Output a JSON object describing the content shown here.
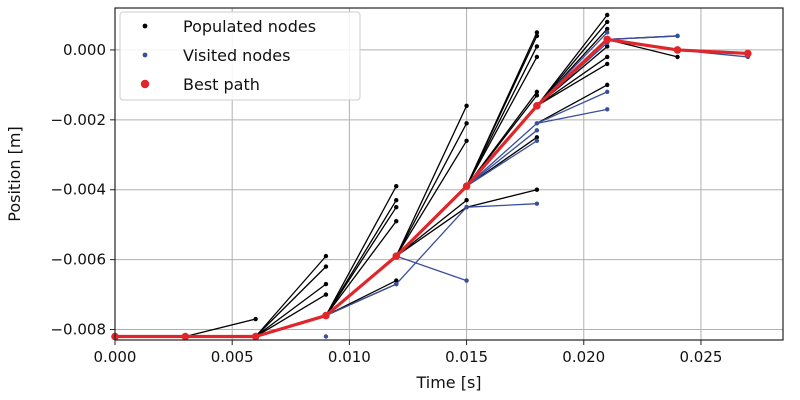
{
  "chart_data": {
    "type": "line",
    "xlabel": "Time [s]",
    "ylabel": "Position [m]",
    "xlim": [
      0,
      0.0285
    ],
    "ylim": [
      -0.0083,
      0.0012
    ],
    "x_ticks": [
      0,
      0.005,
      0.01,
      0.015,
      0.02,
      0.025
    ],
    "x_tick_labels": [
      "0.000",
      "0.005",
      "0.010",
      "0.015",
      "0.020",
      "0.025"
    ],
    "y_ticks": [
      -0.008,
      -0.006,
      -0.004,
      -0.002,
      0.0
    ],
    "y_tick_labels": [
      "−0.008",
      "−0.006",
      "−0.004",
      "−0.002",
      "0.000"
    ],
    "grid": true,
    "legend_position": "top-left",
    "colors": {
      "populated": "#000000",
      "visited": "#3a4f9c",
      "best": "#e0262b"
    },
    "series": [
      {
        "name": "Populated nodes",
        "style": "segments",
        "segments": [
          [
            [
              0.0,
              -0.0082
            ],
            [
              0.003,
              -0.0082
            ]
          ],
          [
            [
              0.003,
              -0.0082
            ],
            [
              0.006,
              -0.0077
            ]
          ],
          [
            [
              0.006,
              -0.0082
            ],
            [
              0.009,
              -0.0059
            ]
          ],
          [
            [
              0.006,
              -0.0082
            ],
            [
              0.009,
              -0.0062
            ]
          ],
          [
            [
              0.006,
              -0.0082
            ],
            [
              0.009,
              -0.0067
            ]
          ],
          [
            [
              0.006,
              -0.0082
            ],
            [
              0.009,
              -0.007
            ]
          ],
          [
            [
              0.006,
              -0.0082
            ],
            [
              0.009,
              -0.0076
            ]
          ],
          [
            [
              0.009,
              -0.0076
            ],
            [
              0.012,
              -0.0039
            ]
          ],
          [
            [
              0.009,
              -0.0076
            ],
            [
              0.012,
              -0.0043
            ]
          ],
          [
            [
              0.009,
              -0.0076
            ],
            [
              0.012,
              -0.0045
            ]
          ],
          [
            [
              0.009,
              -0.0076
            ],
            [
              0.012,
              -0.0049
            ]
          ],
          [
            [
              0.009,
              -0.0076
            ],
            [
              0.012,
              -0.0067
            ]
          ],
          [
            [
              0.009,
              -0.0076
            ],
            [
              0.012,
              -0.0066
            ]
          ],
          [
            [
              0.012,
              -0.0059
            ],
            [
              0.015,
              -0.0016
            ]
          ],
          [
            [
              0.012,
              -0.0059
            ],
            [
              0.015,
              -0.0021
            ]
          ],
          [
            [
              0.012,
              -0.0059
            ],
            [
              0.015,
              -0.0026
            ]
          ],
          [
            [
              0.012,
              -0.0059
            ],
            [
              0.015,
              -0.0043
            ]
          ],
          [
            [
              0.012,
              -0.0059
            ],
            [
              0.015,
              -0.0045
            ]
          ],
          [
            [
              0.015,
              -0.0039
            ],
            [
              0.018,
              0.0005
            ]
          ],
          [
            [
              0.015,
              -0.0039
            ],
            [
              0.018,
              0.0004
            ]
          ],
          [
            [
              0.015,
              -0.0039
            ],
            [
              0.018,
              0.0001
            ]
          ],
          [
            [
              0.015,
              -0.0039
            ],
            [
              0.018,
              -0.0002
            ]
          ],
          [
            [
              0.015,
              -0.0039
            ],
            [
              0.018,
              -0.0012
            ]
          ],
          [
            [
              0.015,
              -0.0039
            ],
            [
              0.018,
              -0.0013
            ]
          ],
          [
            [
              0.015,
              -0.0039
            ],
            [
              0.018,
              -0.0025
            ]
          ],
          [
            [
              0.015,
              -0.0045
            ],
            [
              0.018,
              -0.004
            ]
          ],
          [
            [
              0.018,
              -0.0016
            ],
            [
              0.021,
              0.001
            ]
          ],
          [
            [
              0.018,
              -0.0016
            ],
            [
              0.021,
              0.0008
            ]
          ],
          [
            [
              0.018,
              -0.0016
            ],
            [
              0.021,
              0.0006
            ]
          ],
          [
            [
              0.018,
              -0.0016
            ],
            [
              0.021,
              0.0001
            ]
          ],
          [
            [
              0.018,
              -0.0016
            ],
            [
              0.021,
              -0.0002
            ]
          ],
          [
            [
              0.018,
              -0.0016
            ],
            [
              0.021,
              -0.0004
            ]
          ],
          [
            [
              0.018,
              -0.0021
            ],
            [
              0.021,
              -0.001
            ]
          ],
          [
            [
              0.021,
              0.0003
            ],
            [
              0.024,
              -0.0002
            ]
          ],
          [
            [
              0.021,
              0.0003
            ],
            [
              0.024,
              0.0004
            ]
          ]
        ]
      },
      {
        "name": "Visited nodes",
        "style": "segments",
        "segments": [
          [
            [
              0.009,
              -0.0082
            ],
            [
              0.009,
              -0.0082
            ]
          ],
          [
            [
              0.009,
              -0.0076
            ],
            [
              0.012,
              -0.0067
            ]
          ],
          [
            [
              0.012,
              -0.0059
            ],
            [
              0.015,
              -0.0066
            ]
          ],
          [
            [
              0.012,
              -0.0067
            ],
            [
              0.015,
              -0.0045
            ]
          ],
          [
            [
              0.015,
              -0.0039
            ],
            [
              0.018,
              -0.0021
            ]
          ],
          [
            [
              0.015,
              -0.0039
            ],
            [
              0.018,
              -0.0023
            ]
          ],
          [
            [
              0.015,
              -0.0039
            ],
            [
              0.018,
              -0.0026
            ]
          ],
          [
            [
              0.015,
              -0.0045
            ],
            [
              0.018,
              -0.0044
            ]
          ],
          [
            [
              0.018,
              -0.0016
            ],
            [
              0.021,
              0.0002
            ]
          ],
          [
            [
              0.018,
              -0.0016
            ],
            [
              0.021,
              0.0005
            ]
          ],
          [
            [
              0.018,
              -0.0021
            ],
            [
              0.021,
              -0.0012
            ]
          ],
          [
            [
              0.018,
              -0.0021
            ],
            [
              0.021,
              -0.0017
            ]
          ],
          [
            [
              0.021,
              0.0003
            ],
            [
              0.024,
              0.0004
            ]
          ],
          [
            [
              0.024,
              0.0
            ],
            [
              0.027,
              -0.0002
            ]
          ]
        ]
      },
      {
        "name": "Best path",
        "x": [
          0.0,
          0.003,
          0.006,
          0.009,
          0.012,
          0.015,
          0.018,
          0.021,
          0.024,
          0.027
        ],
        "y": [
          -0.0082,
          -0.0082,
          -0.0082,
          -0.0076,
          -0.0059,
          -0.0039,
          -0.0016,
          0.0003,
          0.0,
          -0.0001
        ]
      }
    ]
  }
}
